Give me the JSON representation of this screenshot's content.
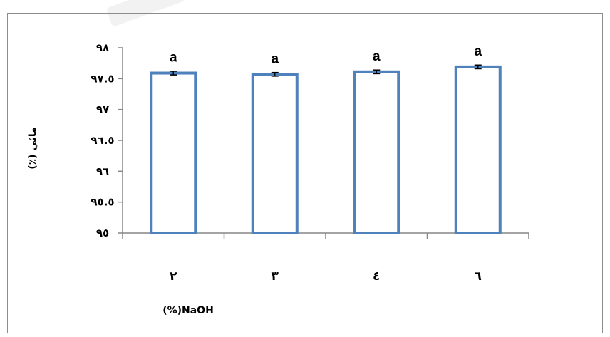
{
  "chart_data": {
    "type": "bar",
    "categories": [
      "٢",
      "٣",
      "٤",
      "٦"
    ],
    "values": [
      97.59,
      97.57,
      97.61,
      97.69
    ],
    "errors": [
      0.03,
      0.03,
      0.03,
      0.03
    ],
    "data_labels": [
      "a",
      "a",
      "a",
      "a"
    ],
    "xlabel": "(%)NaOH",
    "ylabel": "(٪) مائي",
    "ylim": [
      95,
      98
    ],
    "yticks": [
      {
        "value": 98,
        "label": "٩٨"
      },
      {
        "value": 97.5,
        "label": "٩٧.٥"
      },
      {
        "value": 97,
        "label": "٩٧"
      },
      {
        "value": 96.5,
        "label": "٩٦.٥"
      },
      {
        "value": 96,
        "label": "٩٦"
      },
      {
        "value": 95.5,
        "label": "٩٥.٥"
      },
      {
        "value": 95,
        "label": "٩٥"
      }
    ],
    "grid": false,
    "bar_style": "outline",
    "bar_color": "#4f81bd"
  }
}
